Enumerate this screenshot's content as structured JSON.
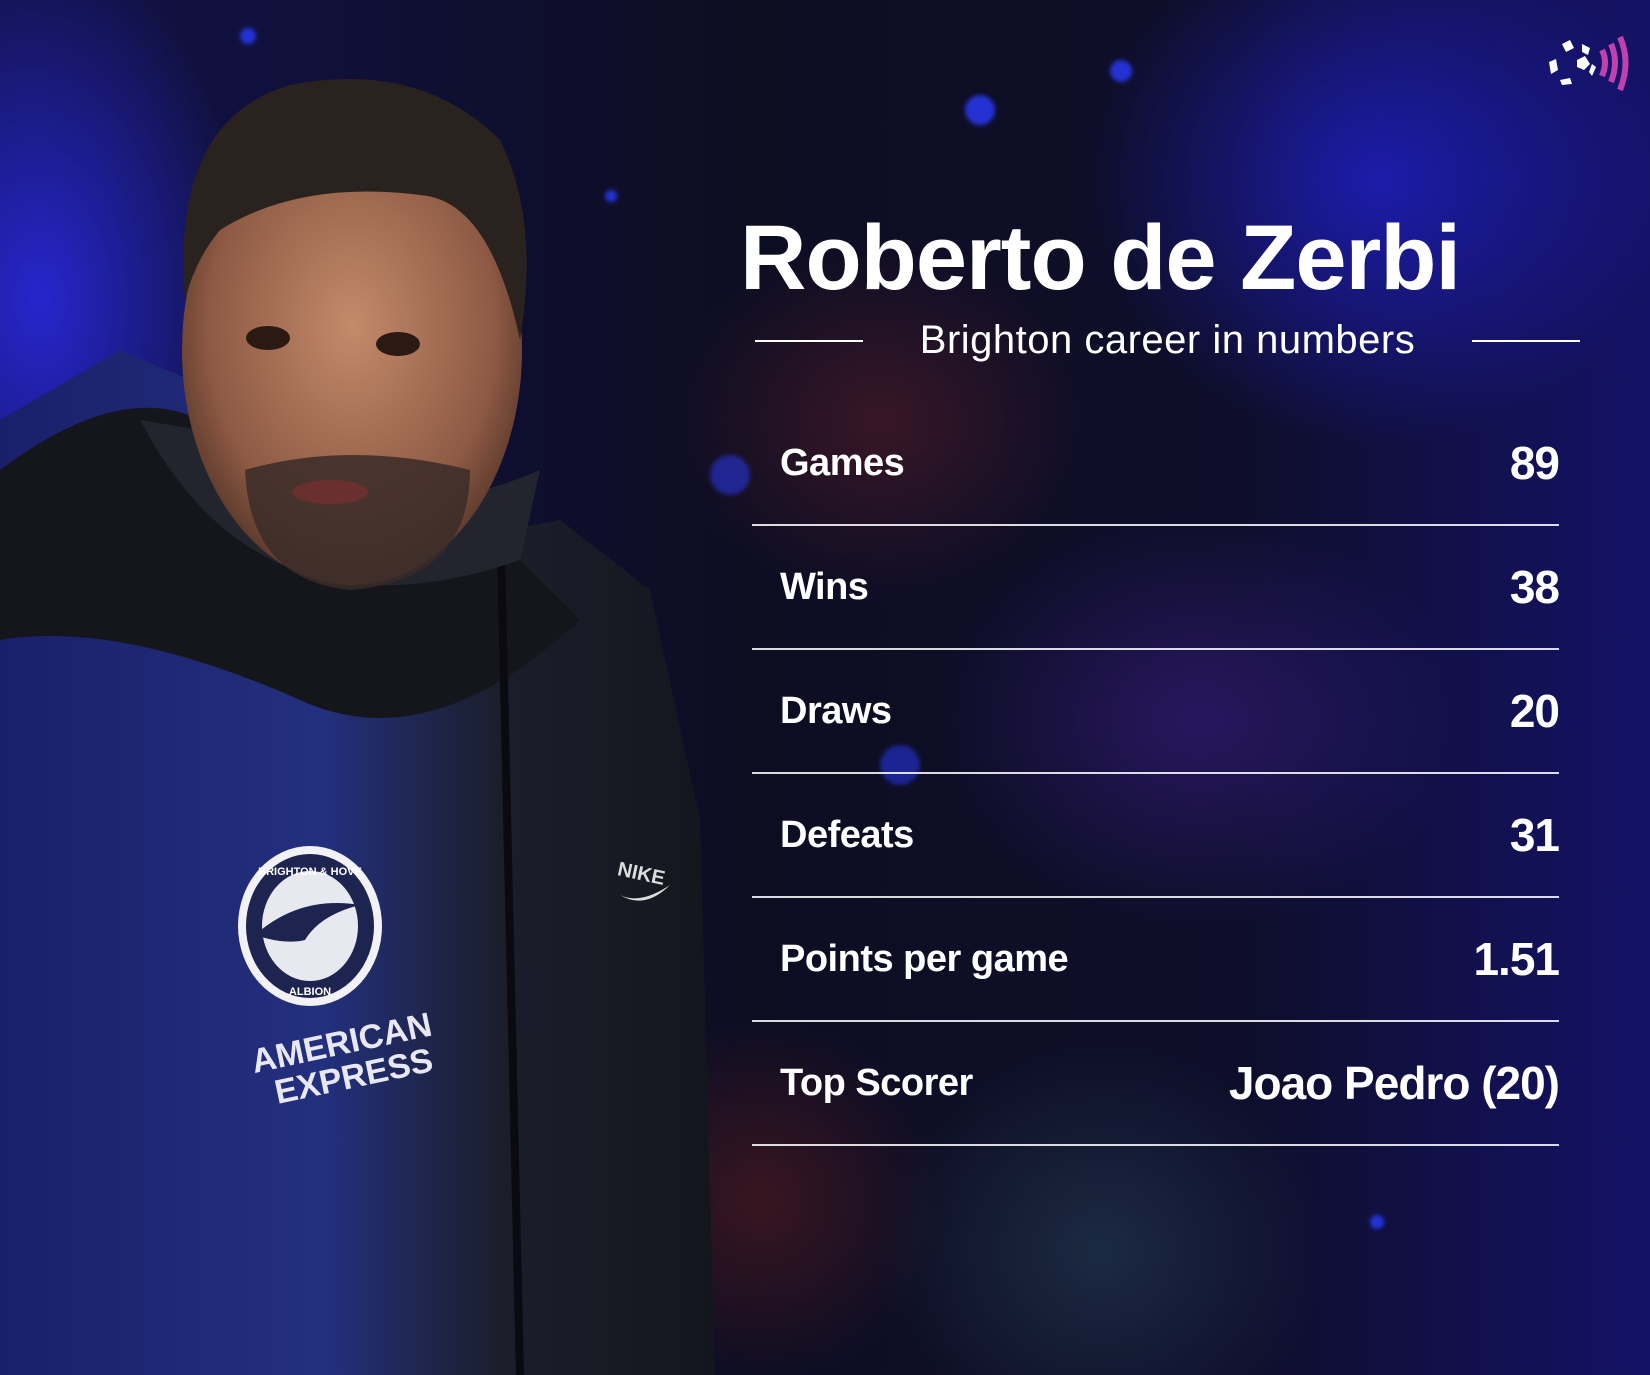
{
  "title": "Roberto de Zerbi",
  "subtitle": "Brighton career in numbers",
  "stats": [
    {
      "label": "Games",
      "value": "89"
    },
    {
      "label": "Wins",
      "value": "38"
    },
    {
      "label": "Draws",
      "value": "20"
    },
    {
      "label": "Defeats",
      "value": "31"
    },
    {
      "label": "Points per game",
      "value": "1.51"
    },
    {
      "label": "Top Scorer",
      "value": "Joao Pedro (20)"
    }
  ],
  "logo": {
    "icon": "football-broadcast-icon",
    "accent": "#c040b0"
  },
  "photo": {
    "badge_top": "BRIGHTON & HOVE",
    "badge_bottom": "ALBION",
    "sponsor_line1": "AMERICAN",
    "sponsor_line2": "EXPRESS",
    "brand": "NIKE"
  },
  "colors": {
    "text": "#ffffff",
    "background_blue": "#1a1aa0",
    "background_dark": "#0d0d22"
  }
}
